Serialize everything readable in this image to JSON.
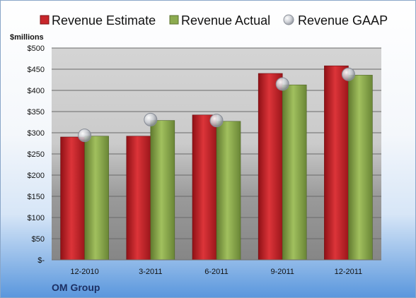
{
  "chart_data": {
    "type": "bar",
    "categories": [
      "12-2010",
      "3-2011",
      "6-2011",
      "9-2011",
      "12-2011"
    ],
    "series": [
      {
        "name": "Revenue Estimate",
        "values": [
          290,
          292,
          342,
          440,
          458
        ]
      },
      {
        "name": "Revenue Actual",
        "values": [
          292,
          329,
          327,
          413,
          436
        ]
      },
      {
        "name": "Revenue GAAP",
        "values": [
          294,
          331,
          329,
          415,
          438
        ]
      }
    ],
    "ylabel": "$millions",
    "ylim": [
      0,
      500
    ],
    "yticks": [
      0,
      50,
      100,
      150,
      200,
      250,
      300,
      350,
      400,
      450,
      500
    ],
    "ytick_labels": [
      "$-",
      "$50",
      "$100",
      "$150",
      "$200",
      "$250",
      "$300",
      "$350",
      "$400",
      "$450",
      "$500"
    ],
    "grid": true,
    "legend": "top",
    "colors": {
      "estimate": "#c8262b",
      "actual": "#8cab4f",
      "gaap": "#c6c9cf"
    }
  },
  "footer": {
    "company": "OM Group"
  }
}
